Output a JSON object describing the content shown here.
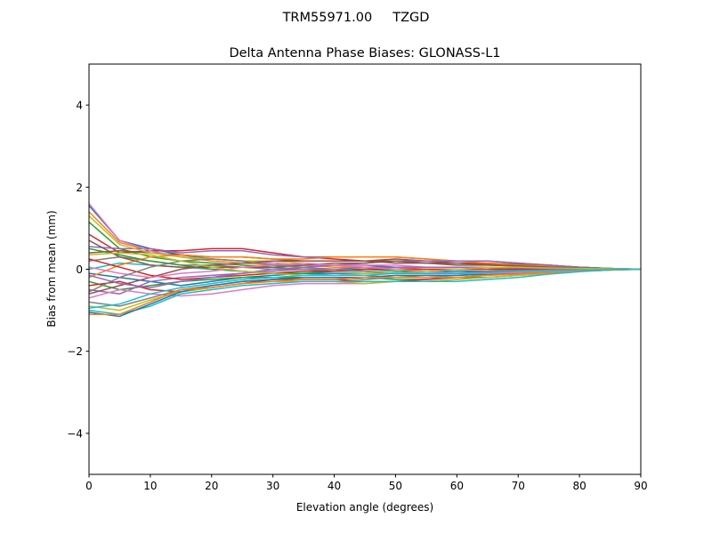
{
  "chart_data": {
    "type": "line",
    "suptitle": "TRM55971.00     TZGD",
    "title": "Delta Antenna Phase Biases: GLONASS-L1",
    "xlabel": "Elevation angle (degrees)",
    "ylabel": "Bias from mean (mm)",
    "xlim": [
      0,
      90
    ],
    "ylim": [
      -5,
      5
    ],
    "xticks": [
      0,
      10,
      20,
      30,
      40,
      50,
      60,
      70,
      80,
      90
    ],
    "yticks": [
      -4,
      -2,
      0,
      2,
      4
    ],
    "ytick_labels": [
      "−4",
      "−2",
      "0",
      "2",
      "4"
    ],
    "grid": false,
    "colors": [
      "#1f77b4",
      "#ff7f0e",
      "#2ca02c",
      "#d62728",
      "#9467bd",
      "#8c564b",
      "#e377c2",
      "#7f7f7f",
      "#bcbd22",
      "#17becf"
    ],
    "x": [
      0,
      5,
      10,
      15,
      20,
      25,
      30,
      35,
      40,
      45,
      50,
      55,
      60,
      65,
      70,
      75,
      80,
      85,
      90
    ],
    "series": [
      {
        "values": [
          1.55,
          0.7,
          0.5,
          0.35,
          0.25,
          0.2,
          0.15,
          0.1,
          0.1,
          0.1,
          0.05,
          0.05,
          0.05,
          0.05,
          0.03,
          0.02,
          0.01,
          0,
          0
        ]
      },
      {
        "values": [
          1.4,
          0.65,
          0.45,
          0.3,
          0.2,
          0.15,
          0.1,
          0.1,
          0.05,
          0.05,
          0.05,
          0,
          0,
          0,
          0,
          0,
          0,
          0,
          0
        ]
      },
      {
        "values": [
          1.15,
          0.5,
          0.3,
          0.2,
          0.15,
          0.1,
          0.05,
          0,
          0,
          0,
          -0.05,
          -0.05,
          -0.05,
          -0.05,
          -0.03,
          -0.02,
          -0.01,
          0,
          0
        ]
      },
      {
        "values": [
          0.85,
          0.4,
          0.45,
          0.45,
          0.5,
          0.5,
          0.4,
          0.3,
          0.25,
          0.2,
          0.2,
          0.15,
          0.15,
          0.12,
          0.1,
          0.08,
          0.05,
          0.02,
          0
        ]
      },
      {
        "values": [
          0.55,
          0.5,
          0.5,
          0.4,
          0.45,
          0.45,
          0.35,
          0.3,
          0.3,
          0.3,
          0.3,
          0.25,
          0.2,
          0.2,
          0.15,
          0.1,
          0.05,
          0.02,
          0
        ]
      },
      {
        "values": [
          0.4,
          0.45,
          0.4,
          0.35,
          0.3,
          0.3,
          0.25,
          0.2,
          0.2,
          0.2,
          0.25,
          0.2,
          0.15,
          0.15,
          0.12,
          0.1,
          0.05,
          0.02,
          0
        ]
      },
      {
        "values": [
          1.6,
          0.7,
          0.45,
          0.3,
          0.25,
          0.2,
          0.15,
          0.1,
          0.1,
          0.1,
          0.1,
          0.05,
          0.05,
          0.05,
          0.03,
          0.02,
          0.01,
          0,
          0
        ]
      },
      {
        "values": [
          0.2,
          0.3,
          0.2,
          0.1,
          0.1,
          0.05,
          0,
          0,
          -0.05,
          -0.05,
          -0.1,
          -0.1,
          -0.1,
          -0.1,
          -0.08,
          -0.05,
          -0.03,
          -0.01,
          0
        ]
      },
      {
        "values": [
          1.3,
          0.6,
          0.4,
          0.3,
          0.25,
          0.2,
          0.2,
          0.15,
          0.1,
          0.05,
          0,
          0,
          0,
          0,
          0,
          0,
          0,
          0,
          0
        ]
      },
      {
        "values": [
          0,
          0.15,
          0.1,
          0.05,
          0,
          -0.05,
          -0.1,
          -0.1,
          -0.15,
          -0.15,
          -0.2,
          -0.2,
          -0.15,
          -0.12,
          -0.1,
          -0.07,
          -0.04,
          -0.01,
          0
        ]
      },
      {
        "values": [
          -0.1,
          -0.2,
          -0.3,
          -0.4,
          -0.3,
          -0.2,
          -0.15,
          -0.1,
          -0.1,
          -0.1,
          -0.1,
          -0.05,
          -0.05,
          -0.05,
          -0.03,
          -0.02,
          -0.01,
          0,
          0
        ]
      },
      {
        "values": [
          -0.2,
          0.1,
          0.3,
          0.35,
          0.3,
          0.3,
          0.25,
          0.25,
          0.3,
          0.3,
          0.3,
          0.25,
          0.2,
          0.15,
          0.1,
          0.08,
          0.05,
          0.02,
          0
        ]
      },
      {
        "values": [
          -0.3,
          -0.5,
          -0.4,
          -0.3,
          -0.25,
          -0.2,
          -0.2,
          -0.2,
          -0.2,
          -0.2,
          -0.25,
          -0.25,
          -0.2,
          -0.2,
          -0.15,
          -0.1,
          -0.05,
          -0.02,
          0
        ]
      },
      {
        "values": [
          -0.4,
          -0.3,
          -0.5,
          -0.55,
          -0.45,
          -0.35,
          -0.25,
          -0.25,
          -0.25,
          -0.3,
          -0.3,
          -0.25,
          -0.2,
          -0.15,
          -0.1,
          -0.07,
          -0.04,
          -0.01,
          0
        ]
      },
      {
        "values": [
          -0.5,
          -0.6,
          -0.3,
          -0.2,
          -0.15,
          -0.1,
          0,
          0.05,
          0.1,
          0.15,
          0.2,
          0.2,
          0.2,
          0.2,
          0.15,
          0.1,
          0.05,
          0.02,
          0
        ]
      },
      {
        "values": [
          -0.6,
          -0.4,
          -0.2,
          0,
          0.1,
          0.15,
          0.2,
          0.2,
          0.2,
          0.2,
          0.15,
          0.15,
          0.1,
          0.1,
          0.08,
          0.05,
          0.03,
          0.01,
          0
        ]
      },
      {
        "values": [
          -0.7,
          -0.5,
          -0.6,
          -0.65,
          -0.6,
          -0.5,
          -0.4,
          -0.35,
          -0.35,
          -0.35,
          -0.3,
          -0.3,
          -0.25,
          -0.2,
          -0.15,
          -0.1,
          -0.05,
          -0.02,
          0
        ]
      },
      {
        "values": [
          -0.8,
          -0.9,
          -0.7,
          -0.5,
          -0.4,
          -0.3,
          -0.25,
          -0.2,
          -0.2,
          -0.25,
          -0.2,
          -0.15,
          -0.15,
          -0.1,
          -0.08,
          -0.05,
          -0.03,
          -0.01,
          0
        ]
      },
      {
        "values": [
          -0.9,
          -1.0,
          -0.75,
          -0.55,
          -0.45,
          -0.35,
          -0.3,
          -0.3,
          -0.3,
          -0.35,
          -0.3,
          -0.3,
          -0.25,
          -0.2,
          -0.15,
          -0.1,
          -0.05,
          -0.02,
          0
        ]
      },
      {
        "values": [
          -1.0,
          -1.1,
          -0.9,
          -0.6,
          -0.5,
          -0.4,
          -0.35,
          -0.3,
          -0.3,
          -0.3,
          -0.3,
          -0.3,
          -0.3,
          -0.25,
          -0.2,
          -0.12,
          -0.06,
          -0.02,
          0
        ]
      },
      {
        "values": [
          -1.05,
          -1.15,
          -0.85,
          -0.55,
          -0.4,
          -0.3,
          -0.25,
          -0.2,
          -0.2,
          -0.2,
          -0.15,
          -0.15,
          -0.15,
          -0.12,
          -0.1,
          -0.07,
          -0.04,
          -0.01,
          0
        ]
      },
      {
        "values": [
          -1.1,
          -1.1,
          -0.8,
          -0.5,
          -0.45,
          -0.35,
          -0.3,
          -0.25,
          -0.25,
          -0.2,
          -0.2,
          -0.2,
          -0.2,
          -0.15,
          -0.12,
          -0.08,
          -0.04,
          -0.01,
          0
        ]
      },
      {
        "values": [
          0.5,
          0.35,
          0.2,
          0.1,
          0,
          -0.05,
          -0.1,
          -0.1,
          -0.05,
          0,
          0.05,
          0.05,
          0.05,
          0.05,
          0.03,
          0.02,
          0.01,
          0,
          0
        ]
      },
      {
        "values": [
          0.25,
          0.05,
          -0.15,
          -0.25,
          -0.2,
          -0.15,
          -0.1,
          -0.05,
          -0.05,
          0,
          0,
          0,
          0,
          0,
          0,
          0,
          0,
          0,
          0
        ]
      },
      {
        "values": [
          -0.15,
          -0.35,
          -0.45,
          -0.3,
          -0.2,
          -0.1,
          -0.05,
          0,
          0,
          0.05,
          0.05,
          0.05,
          0.05,
          0.05,
          0.03,
          0.02,
          0.01,
          0,
          0
        ]
      },
      {
        "values": [
          0.7,
          0.3,
          0.1,
          0.05,
          0.05,
          0.05,
          0.05,
          0.1,
          0.15,
          0.15,
          0.2,
          0.15,
          0.15,
          0.1,
          0.08,
          0.05,
          0.03,
          0.01,
          0
        ]
      },
      {
        "values": [
          0.05,
          -0.1,
          -0.2,
          -0.1,
          -0.05,
          0.05,
          0.1,
          0.15,
          0.1,
          0.05,
          0,
          -0.05,
          -0.1,
          -0.1,
          -0.08,
          -0.05,
          -0.03,
          -0.01,
          0
        ]
      },
      {
        "values": [
          -0.55,
          -0.2,
          0.05,
          0.2,
          0.25,
          0.2,
          0.1,
          0.05,
          0,
          -0.05,
          -0.1,
          -0.1,
          -0.1,
          -0.05,
          -0.03,
          -0.02,
          -0.01,
          0,
          0
        ]
      },
      {
        "values": [
          0.35,
          0.4,
          0.35,
          0.2,
          0.05,
          -0.05,
          -0.1,
          -0.15,
          -0.15,
          -0.1,
          -0.1,
          -0.05,
          0,
          0.05,
          0.05,
          0.03,
          0.02,
          0.01,
          0
        ]
      },
      {
        "values": [
          -0.95,
          -0.85,
          -0.6,
          -0.45,
          -0.35,
          -0.25,
          -0.2,
          -0.15,
          -0.15,
          -0.15,
          -0.1,
          -0.1,
          -0.1,
          -0.08,
          -0.05,
          -0.03,
          -0.02,
          -0.01,
          0
        ]
      }
    ]
  }
}
